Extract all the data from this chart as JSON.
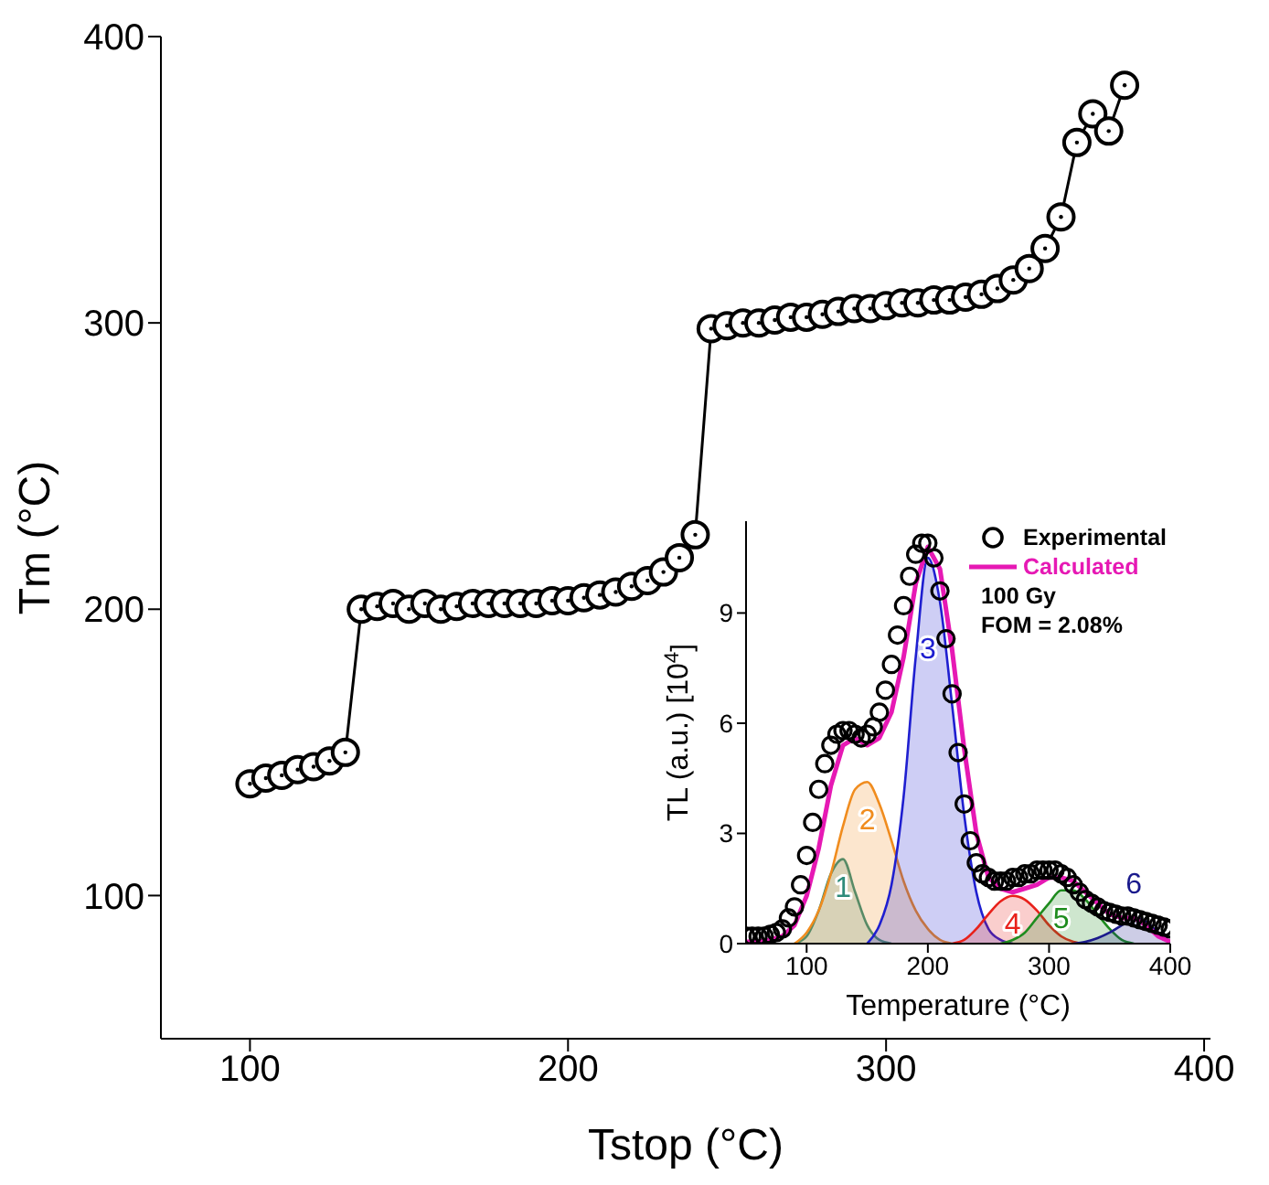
{
  "chart_data": [
    {
      "type": "line",
      "xlabel": "Tstop (°C)",
      "ylabel": "Tm (°C)",
      "marker": "circle",
      "xlim": [
        72,
        402
      ],
      "ylim": [
        50,
        400
      ],
      "xticks": [
        100,
        200,
        300,
        400
      ],
      "yticks": [
        100,
        200,
        300,
        400
      ],
      "x": [
        100,
        105,
        110,
        115,
        120,
        125,
        130,
        135,
        140,
        145,
        150,
        155,
        160,
        165,
        170,
        175,
        180,
        185,
        190,
        195,
        200,
        205,
        210,
        215,
        220,
        225,
        230,
        235,
        240,
        245,
        250,
        255,
        260,
        265,
        270,
        275,
        280,
        285,
        290,
        295,
        300,
        305,
        310,
        315,
        320,
        325,
        330,
        335,
        340,
        345,
        350,
        355,
        360,
        365,
        370,
        375
      ],
      "series": [
        {
          "color": "#000000",
          "values": [
            139,
            141,
            142,
            144,
            145,
            147,
            150,
            200,
            201,
            202,
            200,
            202,
            200,
            201,
            202,
            202,
            202,
            202,
            202,
            203,
            203,
            204,
            205,
            206,
            208,
            210,
            213,
            218,
            226,
            298,
            299,
            300,
            300,
            301,
            302,
            302,
            303,
            304,
            305,
            305,
            306,
            307,
            307,
            308,
            308,
            309,
            310,
            312,
            315,
            319,
            326,
            337,
            363,
            373,
            367,
            383
          ]
        }
      ]
    },
    {
      "type": "area",
      "xlabel": "Temperature (°C)",
      "ylabel": "TL (a.u.) [10$^{4}$]",
      "xlim": [
        50,
        400
      ],
      "ylim": [
        0,
        11.5
      ],
      "xticks": [
        100,
        200,
        300,
        400
      ],
      "yticks": [
        0,
        3,
        6,
        9
      ],
      "legend": "top right",
      "series": [
        {
          "color": "#2e8b7a",
          "x": [
            90,
            100,
            110,
            120,
            130,
            140,
            150,
            160,
            170
          ],
          "values": [
            0,
            0.2,
            0.9,
            1.9,
            2.3,
            1.4,
            0.5,
            0.1,
            0
          ]
        },
        {
          "color": "#f08c1e",
          "x": [
            90,
            100,
            110,
            120,
            130,
            140,
            150,
            160,
            170,
            180,
            190,
            200,
            210,
            220
          ],
          "values": [
            0,
            0.3,
            0.9,
            1.9,
            3.2,
            4.2,
            4.4,
            3.8,
            2.8,
            1.7,
            0.9,
            0.4,
            0.1,
            0
          ]
        },
        {
          "color": "#1f1fd0",
          "x": [
            150,
            160,
            170,
            180,
            190,
            200,
            210,
            220,
            230,
            240,
            250,
            260,
            270
          ],
          "values": [
            0,
            0.5,
            1.6,
            4.0,
            7.8,
            10.5,
            9.3,
            6.5,
            3.5,
            1.4,
            0.4,
            0.1,
            0
          ]
        },
        {
          "color": "#e8211b",
          "x": [
            220,
            230,
            240,
            250,
            260,
            270,
            280,
            290,
            300,
            310,
            320,
            330
          ],
          "values": [
            0,
            0.1,
            0.4,
            0.8,
            1.15,
            1.3,
            1.2,
            0.9,
            0.5,
            0.2,
            0.05,
            0
          ]
        },
        {
          "color": "#1e8c1e",
          "x": [
            260,
            270,
            280,
            290,
            300,
            310,
            320,
            330,
            340,
            350,
            360,
            370
          ],
          "values": [
            0,
            0.1,
            0.3,
            0.7,
            1.1,
            1.45,
            1.45,
            1.2,
            0.8,
            0.4,
            0.1,
            0
          ]
        },
        {
          "color": "#1a1a8c",
          "x": [
            320,
            330,
            340,
            350,
            360,
            370,
            380,
            390,
            400
          ],
          "values": [
            0,
            0.05,
            0.15,
            0.3,
            0.5,
            0.7,
            0.6,
            0.3,
            0.05
          ]
        },
        {
          "type": "scatter",
          "name": "Experimental",
          "color": "#000000",
          "x": [
            50,
            55,
            60,
            65,
            70,
            75,
            80,
            85,
            90,
            95,
            100,
            105,
            110,
            115,
            120,
            125,
            130,
            135,
            140,
            145,
            150,
            155,
            160,
            165,
            170,
            175,
            180,
            185,
            190,
            195,
            200,
            205,
            210,
            215,
            220,
            225,
            230,
            235,
            240,
            245,
            250,
            255,
            260,
            265,
            270,
            275,
            280,
            285,
            290,
            295,
            300,
            305,
            310,
            315,
            320,
            325,
            330,
            335,
            340,
            345,
            350,
            355,
            360,
            365,
            370,
            375,
            380,
            385,
            390,
            395,
            400
          ],
          "values": [
            0.2,
            0.2,
            0.2,
            0.2,
            0.25,
            0.3,
            0.4,
            0.7,
            1.0,
            1.6,
            2.4,
            3.3,
            4.2,
            4.9,
            5.4,
            5.7,
            5.8,
            5.8,
            5.7,
            5.6,
            5.7,
            5.9,
            6.3,
            6.9,
            7.6,
            8.4,
            9.2,
            10.0,
            10.6,
            10.9,
            10.9,
            10.5,
            9.6,
            8.3,
            6.8,
            5.2,
            3.8,
            2.8,
            2.2,
            1.9,
            1.8,
            1.7,
            1.7,
            1.7,
            1.8,
            1.8,
            1.9,
            1.9,
            2.0,
            2.0,
            2.0,
            2.0,
            1.9,
            1.8,
            1.6,
            1.4,
            1.2,
            1.1,
            1.0,
            0.9,
            0.85,
            0.8,
            0.75,
            0.75,
            0.7,
            0.65,
            0.6,
            0.55,
            0.5,
            0.45,
            0.4
          ]
        },
        {
          "type": "line",
          "name": "Calculated",
          "color": "#e619b4",
          "x": [
            50,
            60,
            70,
            80,
            90,
            100,
            110,
            120,
            130,
            140,
            150,
            160,
            170,
            180,
            190,
            200,
            210,
            220,
            230,
            240,
            250,
            260,
            270,
            280,
            290,
            300,
            310,
            320,
            330,
            340,
            350,
            360,
            370,
            380,
            390,
            400
          ],
          "values": [
            0.05,
            0.05,
            0.1,
            0.2,
            0.5,
            1.3,
            2.6,
            4.3,
            5.4,
            5.6,
            5.4,
            5.6,
            6.3,
            7.8,
            9.8,
            10.8,
            10.2,
            8.0,
            5.3,
            3.0,
            1.8,
            1.5,
            1.4,
            1.5,
            1.6,
            1.8,
            1.8,
            1.7,
            1.4,
            1.1,
            0.8,
            0.7,
            0.7,
            0.5,
            0.2,
            0.05
          ]
        }
      ],
      "annotations": [
        {
          "text": "1",
          "x": 130,
          "y": 2.3
        },
        {
          "text": "2",
          "x": 150,
          "y": 4.4
        },
        {
          "text": "3",
          "x": 200,
          "y": 10.5
        },
        {
          "text": "4",
          "x": 270,
          "y": 1.3
        },
        {
          "text": "5",
          "x": 310,
          "y": 1.45
        },
        {
          "text": "6",
          "x": 370,
          "y": 0.7
        },
        "100 Gy",
        "FOM = 2.08%"
      ]
    }
  ]
}
